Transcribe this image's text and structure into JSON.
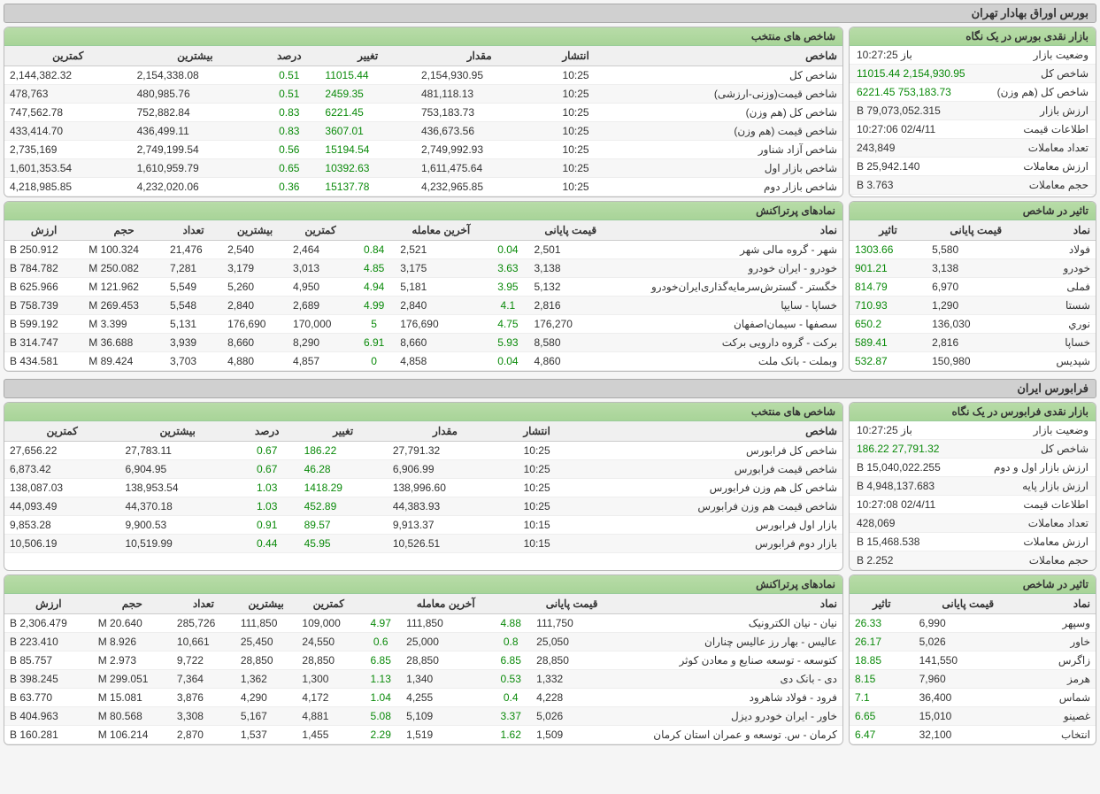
{
  "tse": {
    "title": "بورس اوراق بهادار تهران",
    "glance": {
      "header": "بازار نقدی بورس در یک نگاه",
      "rows": [
        {
          "label": "وضعیت بازار",
          "value": "باز 10:27:25",
          "cls": ""
        },
        {
          "label": "شاخص کل",
          "value": "2,154,930.95 11015.44",
          "cls": "pos"
        },
        {
          "label": "شاخص کل (هم وزن)",
          "value": "753,183.73 6221.45",
          "cls": "pos"
        },
        {
          "label": "ارزش بازار",
          "value": "79,073,052.315 B",
          "cls": ""
        },
        {
          "label": "اطلاعات قیمت",
          "value": "02/4/11 10:27:06",
          "cls": ""
        },
        {
          "label": "تعداد معاملات",
          "value": "243,849",
          "cls": ""
        },
        {
          "label": "ارزش معاملات",
          "value": "25,942.140 B",
          "cls": ""
        },
        {
          "label": "حجم معاملات",
          "value": "3.763 B",
          "cls": ""
        }
      ]
    },
    "indices": {
      "header": "شاخص های منتخب",
      "cols": [
        "شاخص",
        "انتشار",
        "مقدار",
        "تغییر",
        "درصد",
        "بیشترین",
        "کمترین"
      ],
      "rows": [
        [
          "شاخص کل",
          "10:25",
          "2,154,930.95",
          "11015.44",
          "0.51",
          "2,154,338.08",
          "2,144,382.32"
        ],
        [
          "شاخص قیمت(وزنی-ارزشی)",
          "10:25",
          "481,118.13",
          "2459.35",
          "0.51",
          "480,985.76",
          "478,763"
        ],
        [
          "شاخص کل (هم وزن)",
          "10:25",
          "753,183.73",
          "6221.45",
          "0.83",
          "752,882.84",
          "747,562.78"
        ],
        [
          "شاخص قیمت (هم وزن)",
          "10:25",
          "436,673.56",
          "3607.01",
          "0.83",
          "436,499.11",
          "433,414.70"
        ],
        [
          "شاخص آزاد شناور",
          "10:25",
          "2,749,992.93",
          "15194.54",
          "0.56",
          "2,749,199.54",
          "2,735,169"
        ],
        [
          "شاخص بازار اول",
          "10:25",
          "1,611,475.64",
          "10392.63",
          "0.65",
          "1,610,959.79",
          "1,601,353.54"
        ],
        [
          "شاخص بازار دوم",
          "10:25",
          "4,232,965.85",
          "15137.78",
          "0.36",
          "4,232,020.06",
          "4,218,985.85"
        ]
      ]
    },
    "impact": {
      "header": "تاثیر در شاخص",
      "cols": [
        "نماد",
        "قیمت پایانی",
        "تاثیر"
      ],
      "rows": [
        [
          "فولاد",
          "5,580",
          "1303.66"
        ],
        [
          "خودرو",
          "3,138",
          "901.21"
        ],
        [
          "فملی",
          "6,970",
          "814.79"
        ],
        [
          "شستا",
          "1,290",
          "710.93"
        ],
        [
          "نوري",
          "136,030",
          "650.2"
        ],
        [
          "خساپا",
          "2,816",
          "589.41"
        ],
        [
          "شپدیس",
          "150,980",
          "532.87"
        ]
      ]
    },
    "topSymbols": {
      "header": "نمادهای پرتراکنش",
      "cols": [
        "نماد",
        "قیمت پایانی",
        "",
        "آخرین معامله",
        "",
        "کمترین",
        "بیشترین",
        "تعداد",
        "حجم",
        "ارزش"
      ],
      "rows": [
        [
          "شهر - گروه مالی شهر",
          "2,501",
          "0.04",
          "2,521",
          "0.84",
          "2,464",
          "2,540",
          "21,476",
          "100.324 M",
          "250.912 B"
        ],
        [
          "خودرو - ايران‌ خودرو",
          "3,138",
          "3.63",
          "3,175",
          "4.85",
          "3,013",
          "3,179",
          "7,281",
          "250.082 M",
          "784.782 B"
        ],
        [
          "خگستر - گسترش‌سرمایه‌گذاری‌ایران‌خودرو",
          "5,132",
          "3.95",
          "5,181",
          "4.94",
          "4,950",
          "5,260",
          "5,549",
          "121.962 M",
          "625.966 B"
        ],
        [
          "خساپا - سايپا",
          "2,816",
          "4.1",
          "2,840",
          "4.99",
          "2,689",
          "2,840",
          "5,548",
          "269.453 M",
          "758.739 B"
        ],
        [
          "سصفها - سیمان‌اصفهان‌",
          "176,270",
          "4.75",
          "176,690",
          "5",
          "170,000",
          "176,690",
          "5,131",
          "3.399 M",
          "599.192 B"
        ],
        [
          "برکت - گروه دارويی برکت",
          "8,580",
          "5.93",
          "8,660",
          "6.91",
          "8,290",
          "8,660",
          "3,939",
          "36.688 M",
          "314.747 B"
        ],
        [
          "وبملت - بانک ملت",
          "4,860",
          "0.04",
          "4,858",
          "0",
          "4,857",
          "4,880",
          "3,703",
          "89.424 M",
          "434.581 B"
        ]
      ]
    }
  },
  "ifb": {
    "title": "فرابورس ایران",
    "glance": {
      "header": "بازار نقدی فرابورس در یک نگاه",
      "rows": [
        {
          "label": "وضعیت بازار",
          "value": "باز 10:27:25",
          "cls": ""
        },
        {
          "label": "شاخص کل",
          "value": "27,791.32 186.22",
          "cls": "pos"
        },
        {
          "label": "ارزش بازار اول و دوم",
          "value": "15,040,022.255 B",
          "cls": ""
        },
        {
          "label": "ارزش بازار پایه",
          "value": "4,948,137.683 B",
          "cls": ""
        },
        {
          "label": "اطلاعات قیمت",
          "value": "02/4/11 10:27:08",
          "cls": ""
        },
        {
          "label": "تعداد معاملات",
          "value": "428,069",
          "cls": ""
        },
        {
          "label": "ارزش معاملات",
          "value": "15,468.538 B",
          "cls": ""
        },
        {
          "label": "حجم معاملات",
          "value": "2.252 B",
          "cls": ""
        }
      ]
    },
    "indices": {
      "header": "شاخص های منتخب",
      "cols": [
        "شاخص",
        "انتشار",
        "مقدار",
        "تغییر",
        "درصد",
        "بیشترین",
        "کمترین"
      ],
      "rows": [
        [
          "شاخص كل فرابورس",
          "10:25",
          "27,791.32",
          "186.22",
          "0.67",
          "27,783.11",
          "27,656.22"
        ],
        [
          "شاخص قيمت فرابورس",
          "10:25",
          "6,906.99",
          "46.28",
          "0.67",
          "6,904.95",
          "6,873.42"
        ],
        [
          "شاخص كل هم وزن فرابورس",
          "10:25",
          "138,996.60",
          "1418.29",
          "1.03",
          "138,953.54",
          "138,087.03"
        ],
        [
          "شاخص قيمت هم وزن فرابورس",
          "10:25",
          "44,383.93",
          "452.89",
          "1.03",
          "44,370.18",
          "44,093.49"
        ],
        [
          "بازار اول فرابورس",
          "10:15",
          "9,913.37",
          "89.57",
          "0.91",
          "9,900.53",
          "9,853.28"
        ],
        [
          "بازار دوم فرابورس",
          "10:15",
          "10,526.51",
          "45.95",
          "0.44",
          "10,519.99",
          "10,506.19"
        ]
      ]
    },
    "impact": {
      "header": "تاثیر در شاخص",
      "cols": [
        "نماد",
        "قیمت پایانی",
        "تاثیر"
      ],
      "rows": [
        [
          "وسپهر",
          "6,990",
          "26.33"
        ],
        [
          "خاور",
          "5,026",
          "26.17"
        ],
        [
          "زاگرس",
          "141,550",
          "18.85"
        ],
        [
          "هرمز",
          "7,960",
          "8.15"
        ],
        [
          "شماس",
          "36,400",
          "7.1"
        ],
        [
          "غصینو",
          "15,010",
          "6.65"
        ],
        [
          "انتخاب",
          "32,100",
          "6.47"
        ]
      ]
    },
    "topSymbols": {
      "header": "نمادهای پرتراکنش",
      "cols": [
        "نماد",
        "قیمت پایانی",
        "",
        "آخرین معامله",
        "",
        "کمترین",
        "بیشترین",
        "تعداد",
        "حجم",
        "ارزش"
      ],
      "rows": [
        [
          "نیان - نیان الكترونيک",
          "111,750",
          "4.88",
          "111,850",
          "4.97",
          "109,000",
          "111,850",
          "285,726",
          "20.640 M",
          "2,306.479 B"
        ],
        [
          "عالیس - بهار رز عالیس چناران",
          "25,050",
          "0.8",
          "25,000",
          "0.6",
          "24,550",
          "25,450",
          "10,661",
          "8.926 M",
          "223.410 B"
        ],
        [
          "کتوسعه - توسعه صنایع و معادن کوثر",
          "28,850",
          "6.85",
          "28,850",
          "6.85",
          "28,850",
          "28,850",
          "9,722",
          "2.973 M",
          "85.757 B"
        ],
        [
          "دی - بانک دی",
          "1,332",
          "0.53",
          "1,340",
          "1.13",
          "1,300",
          "1,362",
          "7,364",
          "299.051 M",
          "398.245 B"
        ],
        [
          "فرود - فولاد شاهرود",
          "4,228",
          "0.4",
          "4,255",
          "1.04",
          "4,172",
          "4,290",
          "3,876",
          "15.081 M",
          "63.770 B"
        ],
        [
          "خاور - ايران خودرو ديزل",
          "5,026",
          "3.37",
          "5,109",
          "5.08",
          "4,881",
          "5,167",
          "3,308",
          "80.568 M",
          "404.963 B"
        ],
        [
          "کرمان - س. توسعه و عمران استان كرمان",
          "1,509",
          "1.62",
          "1,519",
          "2.29",
          "1,455",
          "1,537",
          "2,870",
          "106.214 M",
          "160.281 B"
        ]
      ]
    }
  }
}
